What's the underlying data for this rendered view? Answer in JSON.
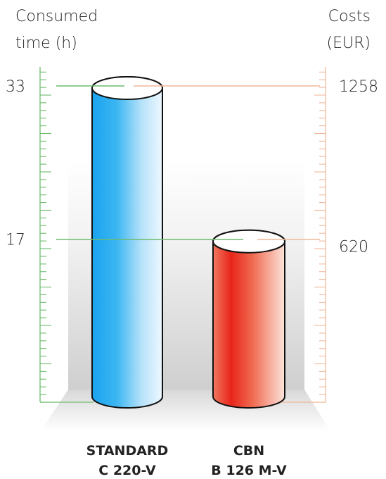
{
  "chart_data": {
    "type": "bar",
    "style": "3d-cylinder",
    "categories": [
      {
        "line1": "STANDARD",
        "line2": "C 220-V"
      },
      {
        "line1": "CBN",
        "line2": "B 126 M-V"
      }
    ],
    "series": [
      {
        "name": "",
        "axis": "left",
        "values": [
          33,
          17
        ]
      },
      {
        "name": "",
        "axis": "right",
        "values": [
          1258,
          620
        ]
      }
    ],
    "left_axis": {
      "label_line1": "Consumed",
      "label_line2": "time (h)",
      "tick_labels": [
        "33",
        "17"
      ],
      "ylim": [
        0,
        33
      ],
      "color": "#6dbb6d"
    },
    "right_axis": {
      "label_line1": "Costs",
      "label_line2": "(EUR)",
      "tick_labels": [
        "1258",
        "620"
      ],
      "ylim": [
        0,
        1258
      ],
      "color": "#f2b89a"
    },
    "colors": {
      "bar1": "#19a6ee",
      "bar2": "#e8301c"
    }
  }
}
